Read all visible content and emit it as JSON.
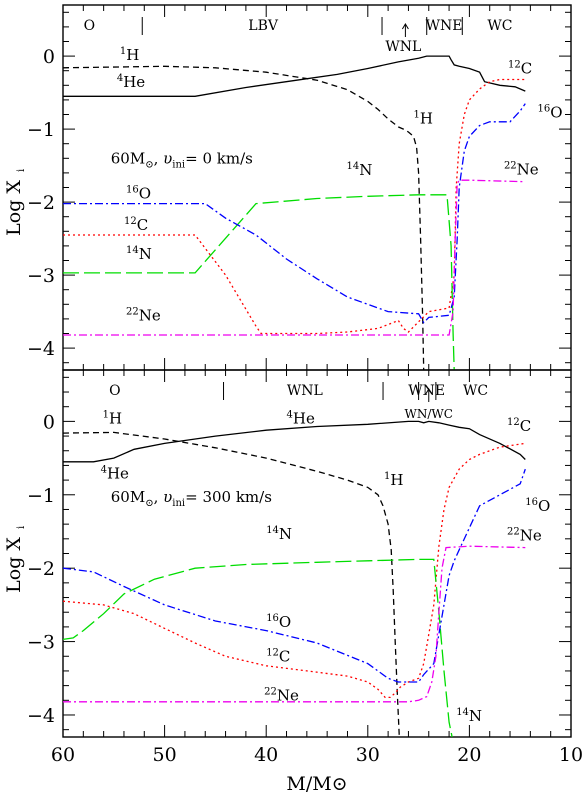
{
  "figure": {
    "xlabel": "M/M⊙",
    "ylabel": "Log X",
    "ylabel_sub": "i",
    "xticks": [
      "60",
      "50",
      "40",
      "30",
      "20",
      "10"
    ],
    "yticks": [
      "0",
      "−1",
      "−2",
      "−3",
      "−4"
    ],
    "colors": {
      "H1": "#000000",
      "He4": "#000000",
      "C12": "#ff0000",
      "N14": "#00dd00",
      "O16": "#0000ff",
      "Ne22": "#ee00ee"
    }
  },
  "chart_data": [
    {
      "type": "line",
      "title": "60M⊙, υini= 0 km/s",
      "xlabel": "M/M⊙",
      "ylabel": "Log Xi",
      "xlim": [
        60,
        10
      ],
      "ylim": [
        -4.3,
        0.7
      ],
      "phases": {
        "labels": [
          "O",
          "LBV",
          "WNE",
          "WC"
        ],
        "boundaries": [
          52.2,
          28.6,
          24.2,
          20.7
        ],
        "arrow_label": "WNL",
        "arrow_x": 26.3
      },
      "series": [
        {
          "name": "1H",
          "color": "#000000",
          "dash": "6,4",
          "x": [
            60,
            50,
            45,
            40,
            35,
            32,
            30,
            29,
            28,
            27,
            26.5,
            26,
            25.5,
            25.2,
            25.0,
            24.8,
            24.6,
            24.5
          ],
          "y": [
            -0.16,
            -0.14,
            -0.16,
            -0.22,
            -0.33,
            -0.46,
            -0.62,
            -0.73,
            -0.86,
            -0.97,
            -1.0,
            -1.04,
            -1.1,
            -1.25,
            -1.6,
            -2.5,
            -3.6,
            -4.3
          ]
        },
        {
          "name": "4He",
          "color": "#000000",
          "dash": "",
          "x": [
            60,
            47,
            42,
            37,
            33,
            30,
            27,
            25,
            24.2,
            22,
            21.8,
            21.5,
            21,
            20,
            19,
            18.5,
            17,
            15.5,
            14.5
          ],
          "y": [
            -0.55,
            -0.55,
            -0.43,
            -0.33,
            -0.25,
            -0.17,
            -0.08,
            -0.03,
            0.0,
            0.0,
            -0.05,
            -0.12,
            -0.14,
            -0.17,
            -0.22,
            -0.35,
            -0.4,
            -0.42,
            -0.48
          ]
        },
        {
          "name": "12C",
          "color": "#ff0000",
          "dash": "2,3",
          "x": [
            60,
            47,
            44,
            41,
            40.5,
            38,
            35,
            32,
            29,
            27.5,
            27,
            26.5,
            26,
            24,
            22,
            21.5,
            21.3,
            21,
            20.5,
            20,
            19,
            18,
            17,
            15,
            14.5
          ],
          "y": [
            -2.45,
            -2.45,
            -3.0,
            -3.7,
            -3.8,
            -3.8,
            -3.8,
            -3.78,
            -3.73,
            -3.65,
            -3.62,
            -3.73,
            -3.78,
            -3.5,
            -3.45,
            -3.0,
            -1.8,
            -1.2,
            -0.8,
            -0.6,
            -0.45,
            -0.35,
            -0.32,
            -0.32,
            -0.32
          ]
        },
        {
          "name": "14N",
          "color": "#00dd00",
          "dash": "16,5",
          "x": [
            60,
            47,
            41,
            35,
            30,
            25,
            22.2,
            21.8,
            21.6,
            21.5
          ],
          "y": [
            -2.97,
            -2.97,
            -2.02,
            -1.95,
            -1.92,
            -1.9,
            -1.9,
            -2.6,
            -3.8,
            -4.3
          ]
        },
        {
          "name": "16O",
          "color": "#0000ff",
          "dash": "8,3,2,3",
          "x": [
            60,
            46,
            44,
            41,
            38,
            35,
            32,
            29,
            28,
            26,
            25,
            24.5,
            24,
            22,
            21.5,
            21.2,
            21,
            20.5,
            20,
            19,
            18,
            16,
            15,
            14.5
          ],
          "y": [
            -2.02,
            -2.02,
            -2.22,
            -2.45,
            -2.78,
            -3.05,
            -3.3,
            -3.45,
            -3.5,
            -3.52,
            -3.53,
            -3.65,
            -3.58,
            -3.55,
            -3.3,
            -2.5,
            -1.8,
            -1.3,
            -1.1,
            -0.95,
            -0.9,
            -0.9,
            -0.75,
            -0.65
          ]
        },
        {
          "name": "22Ne",
          "color": "#ee00ee",
          "dash": "8,3,2,3",
          "x": [
            60,
            40,
            30,
            25,
            22,
            21.6,
            21.4,
            21.2,
            21,
            20,
            14.5
          ],
          "y": [
            -3.82,
            -3.82,
            -3.82,
            -3.82,
            -3.82,
            -3.5,
            -2.5,
            -1.75,
            -1.7,
            -1.7,
            -1.72
          ]
        }
      ],
      "annotations": [
        {
          "iso": "1",
          "el": "H",
          "x": 54.4,
          "y": -0.05
        },
        {
          "iso": "4",
          "el": "He",
          "x": 54.7,
          "y": -0.42
        },
        {
          "iso": "1",
          "el": "H",
          "x": 25.5,
          "y": -0.92
        },
        {
          "iso": "12",
          "el": "C",
          "x": 16.2,
          "y": -0.24
        },
        {
          "iso": "16",
          "el": "O",
          "x": 13.3,
          "y": -0.84
        },
        {
          "iso": "22",
          "el": "Ne",
          "x": 16.6,
          "y": -1.62
        },
        {
          "iso": "14",
          "el": "N",
          "x": 32.1,
          "y": -1.63
        },
        {
          "iso": "16",
          "el": "O",
          "x": 53.8,
          "y": -1.95
        },
        {
          "iso": "12",
          "el": "C",
          "x": 54.0,
          "y": -2.38
        },
        {
          "iso": "14",
          "el": "N",
          "x": 53.8,
          "y": -2.78
        },
        {
          "iso": "22",
          "el": "Ne",
          "x": 53.8,
          "y": -3.62
        }
      ],
      "legend_text": {
        "mass": "60M",
        "sun": "⊙",
        "v": "υ",
        "vsub": "ini",
        "rest": "= 0 km/s",
        "x": 55.3,
        "y": -1.47
      }
    },
    {
      "type": "line",
      "title": "60M⊙, υini= 300 km/s",
      "xlabel": "M/M⊙",
      "ylabel": "Log Xi",
      "xlim": [
        60,
        10
      ],
      "ylim": [
        -4.3,
        0.7
      ],
      "phases": {
        "labels": [
          "O",
          "WNL",
          "WNE",
          "WC"
        ],
        "boundaries": [
          44.2,
          28.5,
          25.0,
          23.3
        ],
        "arrow_label": "WN/WC",
        "arrow_x": 24.0
      },
      "series": [
        {
          "name": "1H",
          "color": "#000000",
          "dash": "6,4",
          "x": [
            60,
            55,
            50,
            45,
            40,
            35,
            32,
            30,
            29,
            28.5,
            28,
            27.7,
            27.5,
            27.3,
            27.1,
            26.9
          ],
          "y": [
            -0.16,
            -0.15,
            -0.24,
            -0.36,
            -0.5,
            -0.68,
            -0.8,
            -0.9,
            -1.0,
            -1.15,
            -1.4,
            -1.75,
            -2.3,
            -3.0,
            -3.7,
            -4.3
          ]
        },
        {
          "name": "4He",
          "color": "#000000",
          "dash": "",
          "x": [
            60,
            57,
            55,
            53,
            50,
            45,
            40,
            35,
            30,
            26,
            25,
            24.5,
            24,
            23,
            22,
            21,
            20,
            19,
            17,
            15,
            14.5
          ],
          "y": [
            -0.55,
            -0.55,
            -0.5,
            -0.38,
            -0.3,
            -0.2,
            -0.12,
            -0.07,
            -0.04,
            0.0,
            0.0,
            -0.02,
            0.0,
            -0.02,
            -0.05,
            -0.08,
            -0.1,
            -0.18,
            -0.3,
            -0.45,
            -0.52
          ]
        },
        {
          "name": "12C",
          "color": "#ff0000",
          "dash": "2,3",
          "x": [
            60,
            56,
            53,
            50,
            47,
            44,
            40,
            36,
            32,
            30,
            29,
            28.3,
            27.8,
            27.3,
            26.8,
            26,
            25,
            24.5,
            24,
            23.5,
            23,
            22.5,
            22,
            21,
            20,
            19,
            17,
            15,
            14.5
          ],
          "y": [
            -2.45,
            -2.5,
            -2.62,
            -2.82,
            -3.02,
            -3.2,
            -3.33,
            -3.4,
            -3.47,
            -3.55,
            -3.65,
            -3.76,
            -3.76,
            -3.7,
            -3.62,
            -3.55,
            -3.5,
            -3.3,
            -2.9,
            -2.5,
            -1.7,
            -1.2,
            -0.9,
            -0.65,
            -0.52,
            -0.45,
            -0.35,
            -0.31,
            -0.3
          ]
        },
        {
          "name": "14N",
          "color": "#00dd00",
          "dash": "16,5",
          "x": [
            60,
            59,
            58,
            56,
            54,
            51,
            47,
            42,
            35,
            30,
            25,
            23.5,
            23.0,
            22.5,
            22.0,
            21.7
          ],
          "y": [
            -2.97,
            -2.95,
            -2.85,
            -2.62,
            -2.35,
            -2.15,
            -2.0,
            -1.95,
            -1.92,
            -1.9,
            -1.88,
            -1.88,
            -2.6,
            -3.4,
            -4.1,
            -4.3
          ]
        },
        {
          "name": "16O",
          "color": "#0000ff",
          "dash": "8,3,2,3",
          "x": [
            60,
            57,
            54,
            50,
            45,
            40,
            35,
            30,
            28,
            27,
            26,
            25,
            24.5,
            23.5,
            23,
            22.5,
            22,
            21.5,
            21,
            20,
            19,
            17,
            15,
            14.5
          ],
          "y": [
            -2.0,
            -2.05,
            -2.25,
            -2.5,
            -2.72,
            -2.85,
            -3.02,
            -3.3,
            -3.5,
            -3.55,
            -3.55,
            -3.55,
            -3.45,
            -3.3,
            -2.9,
            -2.5,
            -2.1,
            -1.9,
            -1.75,
            -1.45,
            -1.15,
            -1.0,
            -0.85,
            -0.65
          ]
        },
        {
          "name": "22Ne",
          "color": "#ee00ee",
          "dash": "8,3,2,3",
          "x": [
            60,
            40,
            30,
            26,
            25,
            24.2,
            23.7,
            23.3,
            23.0,
            22.7,
            22.3,
            20,
            14.5
          ],
          "y": [
            -3.82,
            -3.82,
            -3.82,
            -3.82,
            -3.8,
            -3.75,
            -3.55,
            -3.2,
            -2.6,
            -2.0,
            -1.72,
            -1.7,
            -1.72
          ]
        }
      ],
      "annotations": [
        {
          "iso": "1",
          "el": "H",
          "x": 56.1,
          "y": -0.03
        },
        {
          "iso": "4",
          "el": "He",
          "x": 38.0,
          "y": -0.03
        },
        {
          "iso": "4",
          "el": "He",
          "x": 56.3,
          "y": -0.78
        },
        {
          "iso": "12",
          "el": "C",
          "x": 16.3,
          "y": -0.13
        },
        {
          "iso": "1",
          "el": "H",
          "x": 28.4,
          "y": -0.87
        },
        {
          "iso": "16",
          "el": "O",
          "x": 14.5,
          "y": -1.22
        },
        {
          "iso": "22",
          "el": "Ne",
          "x": 16.3,
          "y": -1.62
        },
        {
          "iso": "14",
          "el": "N",
          "x": 40.0,
          "y": -1.6
        },
        {
          "iso": "16",
          "el": "O",
          "x": 40.0,
          "y": -2.8
        },
        {
          "iso": "12",
          "el": "C",
          "x": 40.0,
          "y": -3.27
        },
        {
          "iso": "22",
          "el": "Ne",
          "x": 40.2,
          "y": -3.8
        },
        {
          "iso": "14",
          "el": "N",
          "x": 21.3,
          "y": -4.08
        }
      ],
      "legend_text": {
        "mass": "60M",
        "sun": "⊙",
        "v": "υ",
        "vsub": "ini",
        "rest": "= 300 km/s",
        "x": 55.3,
        "y": -1.1
      }
    }
  ]
}
